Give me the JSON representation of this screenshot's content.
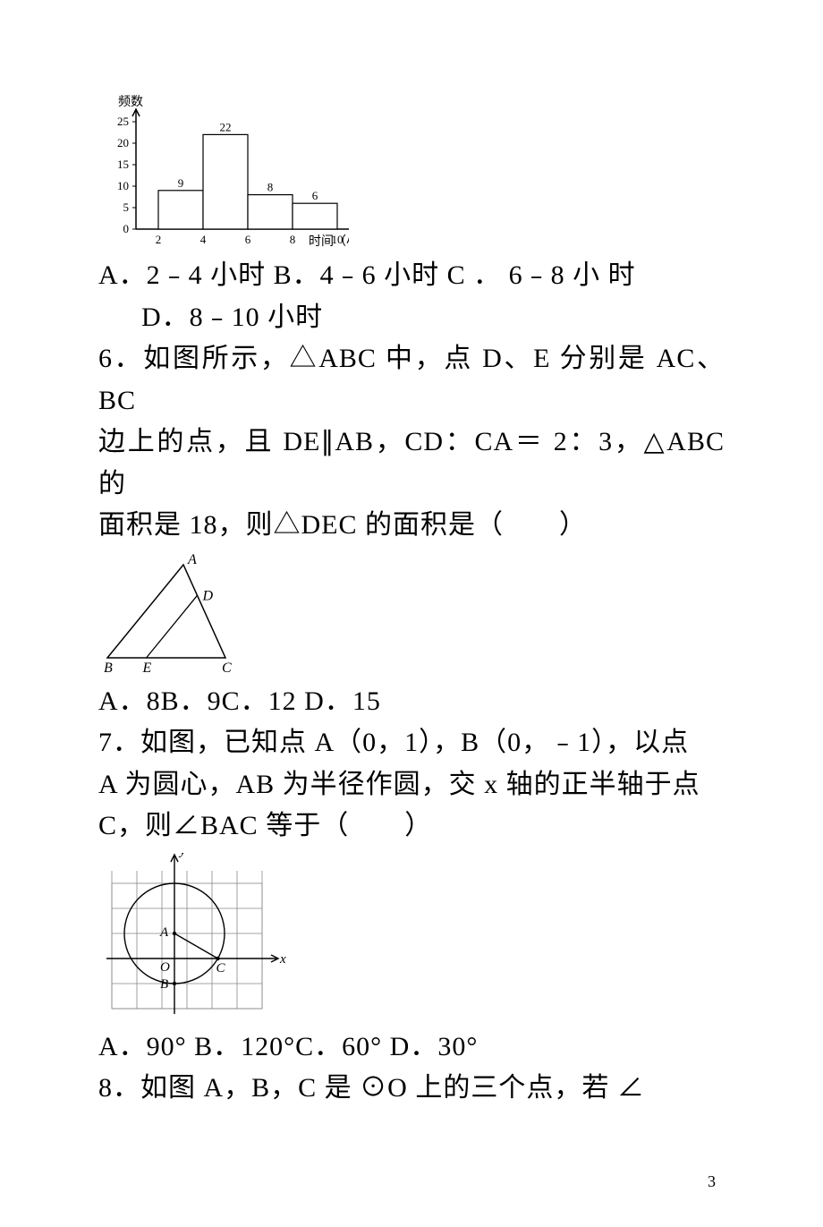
{
  "histogram": {
    "y_label": "频数",
    "x_label": "时间（小时）",
    "y_ticks": [
      0,
      5,
      10,
      15,
      20,
      25
    ],
    "x_ticks": [
      2,
      4,
      6,
      8,
      10
    ],
    "bars": [
      {
        "x0": 2,
        "x1": 4,
        "value": 9
      },
      {
        "x0": 4,
        "x1": 6,
        "value": 22
      },
      {
        "x0": 6,
        "x1": 8,
        "value": 8
      },
      {
        "x0": 8,
        "x1": 10,
        "value": 6
      }
    ],
    "axis_color": "#000000",
    "bar_fill": "#ffffff",
    "bar_stroke": "#000000",
    "label_fontsize": 14,
    "tick_fontsize": 13
  },
  "q5_options": {
    "line1": "A．2﹣4 小时 B．4﹣6 小时 C ． 6﹣8 小 时",
    "line2": "D．8﹣10 小时"
  },
  "q6": {
    "line1": "6．如图所示，△ABC 中，点 D、E 分别是 AC、BC",
    "line2": "边上的点，且 DE∥AB，CD：CA＝ 2：3，△ABC 的",
    "line3": "面积是 18，则△DEC 的面积是（　　）"
  },
  "triangle": {
    "stroke": "#000000",
    "labels": {
      "A": "A",
      "B": "B",
      "C": "C",
      "D": "D",
      "E": "E"
    },
    "label_fontsize": 16,
    "label_style": "italic"
  },
  "q6_options": "A．8B．9C．12 D．15",
  "q7": {
    "line1": "7．如图，已知点 A（0，1），B（0，﹣1），以点",
    "line2": "A 为圆心，AB 为半径作圆，交 x 轴的正半轴于点",
    "line3": "C，则∠BAC 等于（　　）"
  },
  "circle_graph": {
    "grid_color": "#888888",
    "axis_color": "#000000",
    "stroke": "#000000",
    "labels": {
      "O": "O",
      "A": "A",
      "B": "B",
      "C": "C",
      "x": "x",
      "y": "y"
    },
    "label_fontsize": 15,
    "label_style": "italic"
  },
  "q7_options": "A．90° B．120°C．60° D．30°",
  "q8_line1": "8．如图 A，B，C 是 ⊙O 上的三个点，若 ∠",
  "page_number": "3"
}
